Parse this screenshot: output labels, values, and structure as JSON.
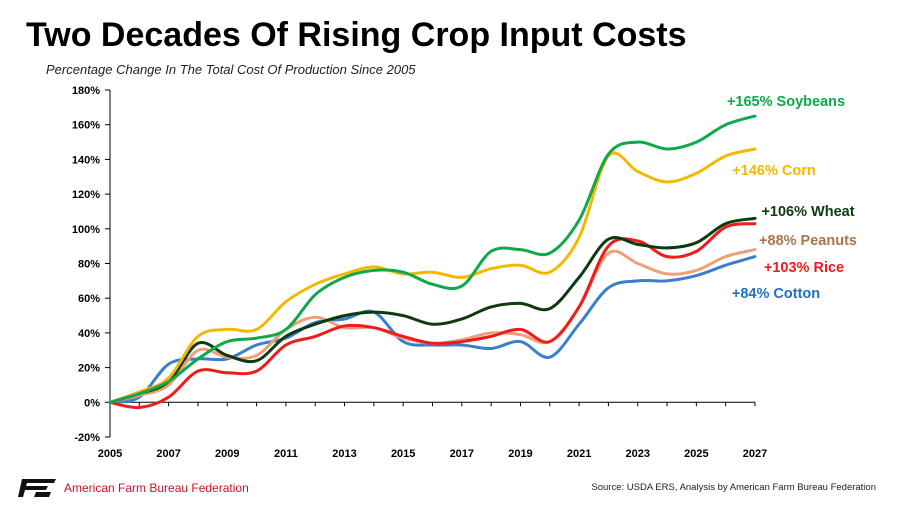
{
  "header": {
    "title": "Two Decades Of Rising Crop Input Costs",
    "subtitle": "Percentage Change In The Total Cost Of Production Since 2005"
  },
  "footer": {
    "brand": "American Farm Bureau Federation",
    "brand_mark": "FB",
    "source": "Source: USDA ERS, Analysis by American Farm Bureau Federation"
  },
  "chart_data": {
    "type": "line",
    "title": "Two Decades Of Rising Crop Input Costs",
    "subtitle": "Percentage Change In The Total Cost Of Production Since 2005",
    "xlim": [
      2005,
      2027
    ],
    "ylim": [
      -20,
      180
    ],
    "x_ticks": [
      "2005",
      "2007",
      "2009",
      "2011",
      "2013",
      "2015",
      "2017",
      "2019",
      "2021",
      "2023",
      "2025",
      "2027"
    ],
    "y_ticks": [
      "-20%",
      "0%",
      "20%",
      "40%",
      "60%",
      "80%",
      "100%",
      "120%",
      "140%",
      "160%",
      "180%"
    ],
    "grid": false,
    "x": [
      2005,
      2006,
      2007,
      2008,
      2009,
      2010,
      2011,
      2012,
      2013,
      2014,
      2015,
      2016,
      2017,
      2018,
      2019,
      2020,
      2021,
      2022,
      2023,
      2024,
      2025,
      2026,
      2027
    ],
    "series": [
      {
        "name": "Soybeans",
        "label": "+165% Soybeans",
        "color": "#0fa84a",
        "values": [
          0,
          5,
          12,
          25,
          35,
          37,
          42,
          62,
          72,
          76,
          75,
          68,
          67,
          87,
          88,
          86,
          105,
          143,
          150,
          146,
          150,
          160,
          165
        ]
      },
      {
        "name": "Corn",
        "label": "+146% Corn",
        "color": "#f5b800",
        "values": [
          0,
          6,
          14,
          38,
          42,
          42,
          58,
          68,
          74,
          78,
          74,
          75,
          72,
          77,
          79,
          75,
          95,
          142,
          133,
          127,
          132,
          142,
          146
        ]
      },
      {
        "name": "Wheat",
        "label": "+106% Wheat",
        "color": "#0d3b0d",
        "values": [
          0,
          5,
          12,
          34,
          27,
          24,
          38,
          45,
          50,
          52,
          50,
          45,
          48,
          55,
          57,
          54,
          72,
          94,
          91,
          89,
          92,
          103,
          106
        ]
      },
      {
        "name": "Peanuts",
        "label": "+88% Peanuts",
        "color": "#f0a078",
        "values": [
          0,
          4,
          10,
          30,
          26,
          27,
          42,
          49,
          43,
          43,
          37,
          34,
          36,
          40,
          39,
          35,
          55,
          86,
          80,
          74,
          76,
          84,
          88
        ]
      },
      {
        "name": "Rice",
        "label": "+103% Rice",
        "color": "#ee1c1c",
        "values": [
          0,
          -3,
          3,
          18,
          17,
          18,
          33,
          38,
          44,
          43,
          38,
          34,
          35,
          38,
          42,
          35,
          55,
          90,
          93,
          84,
          87,
          101,
          103
        ]
      },
      {
        "name": "Cotton",
        "label": "+84% Cotton",
        "color": "#3a7fcc",
        "values": [
          0,
          3,
          22,
          25,
          25,
          33,
          37,
          46,
          48,
          52,
          35,
          33,
          33,
          31,
          35,
          26,
          45,
          66,
          70,
          70,
          73,
          79,
          84
        ]
      }
    ],
    "end_labels": [
      {
        "text": "+165% Soybeans",
        "color": "#0fa84a"
      },
      {
        "text": "+146% Corn",
        "color": "#f5b800"
      },
      {
        "text": "+106% Wheat",
        "color": "#0d3b0d"
      },
      {
        "text": "+88% Peanuts",
        "color": "#a8764a"
      },
      {
        "text": "+103% Rice",
        "color": "#ee1c1c"
      },
      {
        "text": "+84% Cotton",
        "color": "#1f6fc4"
      }
    ]
  }
}
